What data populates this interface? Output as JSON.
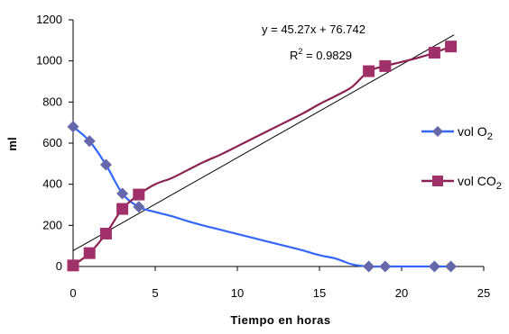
{
  "chart_data": {
    "type": "line",
    "title": "",
    "xlabel": "Tiempo en horas",
    "ylabel": "ml",
    "xlim": [
      0,
      25
    ],
    "ylim": [
      0,
      1200
    ],
    "xticks": [
      0,
      5,
      10,
      15,
      20,
      25
    ],
    "yticks": [
      0,
      200,
      400,
      600,
      800,
      1000,
      1200
    ],
    "grid": false,
    "legend_position": "right",
    "series": [
      {
        "name": "vol O",
        "subscript": "2",
        "color": "#3366ff",
        "marker_color": "#6666aa",
        "marker": "diamond",
        "line_x": [
          0,
          1,
          2,
          3,
          4,
          5,
          6,
          7,
          8,
          9,
          10,
          11,
          12,
          13,
          14,
          15,
          16,
          17,
          18,
          19,
          20,
          21,
          22,
          23
        ],
        "line_y": [
          680,
          610,
          495,
          355,
          290,
          265,
          245,
          220,
          198,
          178,
          158,
          138,
          118,
          98,
          78,
          55,
          38,
          10,
          0,
          0,
          0,
          0,
          0,
          0
        ],
        "marker_x": [
          0,
          1,
          2,
          3,
          4,
          18,
          19,
          22,
          23
        ],
        "marker_y": [
          680,
          610,
          495,
          355,
          290,
          0,
          0,
          0,
          0
        ]
      },
      {
        "name": "vol CO",
        "subscript": "2",
        "color": "#8b2252",
        "marker_color": "#a0306a",
        "marker": "square",
        "line_x": [
          0,
          1,
          2,
          3,
          4,
          5,
          6,
          7,
          8,
          9,
          10,
          11,
          12,
          13,
          14,
          15,
          16,
          17,
          18,
          19,
          20,
          21,
          22,
          23
        ],
        "line_y": [
          5,
          65,
          160,
          280,
          350,
          400,
          430,
          470,
          510,
          545,
          585,
          625,
          665,
          705,
          745,
          790,
          830,
          875,
          950,
          975,
          995,
          1015,
          1040,
          1070
        ],
        "marker_x": [
          0,
          1,
          2,
          3,
          4,
          18,
          19,
          22,
          23
        ],
        "marker_y": [
          5,
          65,
          160,
          280,
          350,
          950,
          975,
          1040,
          1070
        ]
      }
    ],
    "trendline": {
      "slope": 45.27,
      "intercept": 76.742,
      "x_range": [
        0,
        23.2
      ],
      "color": "#000000",
      "equation_text": "y = 45.27x + 76.742",
      "r2_label": "R",
      "r2_sup": "2",
      "r2_value": " = 0.9829"
    }
  }
}
